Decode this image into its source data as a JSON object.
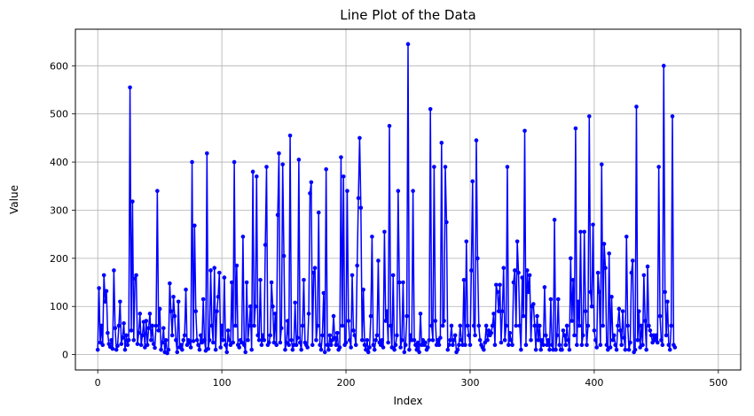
{
  "chart_data": {
    "type": "line",
    "title": "Line Plot of the Data",
    "xlabel": "Index",
    "ylabel": "Value",
    "xlim": [
      -18,
      518
    ],
    "ylim": [
      -32,
      676
    ],
    "xticks": [
      0,
      100,
      200,
      300,
      400,
      500
    ],
    "yticks": [
      0,
      100,
      200,
      300,
      400,
      500,
      600
    ],
    "grid": true,
    "legend": "none",
    "series": [
      {
        "color": "#0000ff",
        "marker": "circle",
        "x_start": 0,
        "x_step": 1,
        "values": [
          10,
          138,
          25,
          60,
          20,
          165,
          110,
          132,
          45,
          22,
          16,
          30,
          12,
          175,
          55,
          10,
          18,
          60,
          110,
          22,
          35,
          65,
          10,
          40,
          20,
          30,
          555,
          50,
          318,
          30,
          158,
          165,
          22,
          45,
          85,
          20,
          40,
          68,
          15,
          70,
          20,
          55,
          85,
          30,
          60,
          22,
          14,
          60,
          340,
          50,
          95,
          10,
          25,
          55,
          5,
          30,
          3,
          10,
          148,
          90,
          40,
          120,
          80,
          30,
          5,
          110,
          15,
          20,
          10,
          30,
          40,
          135,
          20,
          30,
          25,
          15,
          400,
          28,
          268,
          90,
          30,
          20,
          10,
          40,
          25,
          115,
          30,
          8,
          418,
          12,
          30,
          175,
          60,
          25,
          180,
          10,
          90,
          120,
          170,
          15,
          60,
          30,
          160,
          20,
          5,
          50,
          30,
          20,
          150,
          25,
          400,
          60,
          185,
          20,
          15,
          30,
          25,
          245,
          20,
          5,
          150,
          30,
          60,
          100,
          10,
          380,
          60,
          100,
          370,
          40,
          30,
          155,
          20,
          40,
          30,
          228,
          390,
          20,
          25,
          40,
          150,
          100,
          25,
          85,
          20,
          290,
          418,
          25,
          55,
          395,
          205,
          10,
          25,
          70,
          20,
          455,
          30,
          10,
          20,
          108,
          20,
          35,
          405,
          25,
          10,
          60,
          155,
          25,
          20,
          15,
          85,
          335,
          358,
          20,
          170,
          180,
          30,
          60,
          295,
          20,
          10,
          40,
          128,
          5,
          385,
          20,
          10,
          40,
          20,
          30,
          80,
          35,
          20,
          45,
          10,
          15,
          410,
          60,
          370,
          20,
          25,
          340,
          70,
          30,
          15,
          165,
          50,
          40,
          20,
          185,
          325,
          450,
          305,
          30,
          135,
          20,
          10,
          30,
          5,
          15,
          80,
          245,
          20,
          10,
          30,
          40,
          195,
          25,
          20,
          30,
          15,
          255,
          70,
          90,
          25,
          475,
          60,
          15,
          165,
          10,
          20,
          40,
          340,
          150,
          15,
          30,
          150,
          5,
          20,
          80,
          645,
          10,
          40,
          30,
          340,
          30,
          20,
          10,
          25,
          5,
          85,
          20,
          30,
          20,
          25,
          10,
          15,
          30,
          510,
          60,
          30,
          390,
          70,
          20,
          30,
          20,
          35,
          440,
          60,
          70,
          390,
          275,
          10,
          20,
          30,
          60,
          20,
          30,
          40,
          5,
          10,
          20,
          60,
          30,
          20,
          155,
          20,
          235,
          60,
          40,
          20,
          175,
          360,
          60,
          40,
          445,
          200,
          60,
          30,
          20,
          15,
          10,
          25,
          60,
          30,
          50,
          40,
          45,
          60,
          85,
          20,
          145,
          130,
          90,
          145,
          25,
          90,
          180,
          30,
          60,
          390,
          20,
          45,
          30,
          20,
          150,
          175,
          60,
          235,
          170,
          60,
          10,
          160,
          80,
          465,
          20,
          175,
          130,
          165,
          30,
          100,
          105,
          60,
          10,
          80,
          30,
          60,
          10,
          30,
          20,
          140,
          40,
          20,
          30,
          10,
          115,
          20,
          10,
          280,
          10,
          40,
          115,
          20,
          10,
          10,
          50,
          40,
          20,
          60,
          30,
          10,
          200,
          70,
          155,
          40,
          470,
          20,
          110,
          60,
          255,
          20,
          40,
          255,
          90,
          20,
          60,
          495,
          130,
          100,
          270,
          50,
          30,
          15,
          170,
          130,
          20,
          395,
          60,
          230,
          180,
          20,
          10,
          210,
          15,
          120,
          30,
          40,
          20,
          10,
          60,
          95,
          50,
          20,
          90,
          35,
          10,
          245,
          60,
          10,
          25,
          170,
          195,
          5,
          10,
          515,
          30,
          90,
          15,
          60,
          20,
          165,
          70,
          10,
          183,
          60,
          50,
          40,
          25,
          40,
          30,
          40,
          25,
          390,
          80,
          30,
          20,
          600,
          130,
          40,
          110,
          20,
          10,
          60,
          495,
          20,
          15
        ]
      }
    ]
  }
}
